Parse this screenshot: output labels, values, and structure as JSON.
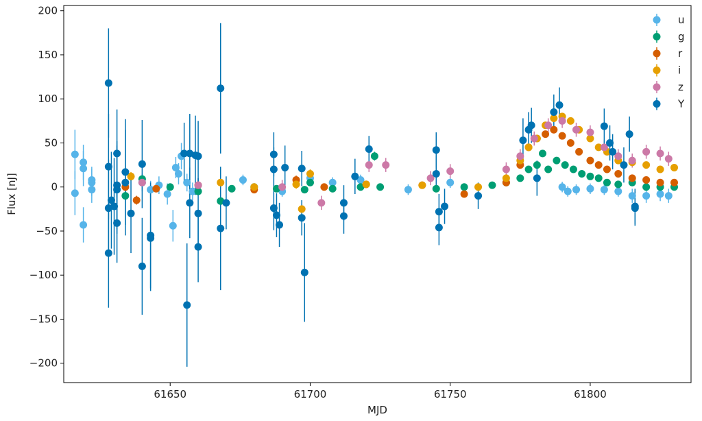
{
  "chart_data": {
    "type": "scatter",
    "title": "",
    "xlabel": "MJD",
    "ylabel": "Flux [nJ]",
    "xlim": [
      61612,
      61836
    ],
    "ylim": [
      -222,
      206
    ],
    "xticks": [
      61650,
      61700,
      61750,
      61800
    ],
    "yticks": [
      -200,
      -150,
      -100,
      -50,
      0,
      50,
      100,
      150,
      200
    ],
    "grid": false,
    "legend_position": "top-right",
    "error_bars": true,
    "series": [
      {
        "name": "u",
        "color": "#56b4e9",
        "points": [
          {
            "x": 61616,
            "y": 37,
            "err": 28
          },
          {
            "x": 61616,
            "y": -7,
            "err": 25
          },
          {
            "x": 61619,
            "y": 28,
            "err": 20
          },
          {
            "x": 61619,
            "y": 21,
            "err": 20
          },
          {
            "x": 61619,
            "y": -43,
            "err": 20
          },
          {
            "x": 61622,
            "y": 8,
            "err": 15
          },
          {
            "x": 61622,
            "y": 5,
            "err": 15
          },
          {
            "x": 61622,
            "y": -3,
            "err": 15
          },
          {
            "x": 61640,
            "y": 5,
            "err": 10
          },
          {
            "x": 61643,
            "y": -3,
            "err": 10
          },
          {
            "x": 61646,
            "y": 2,
            "err": 10
          },
          {
            "x": 61649,
            "y": -8,
            "err": 12
          },
          {
            "x": 61651,
            "y": -44,
            "err": 18
          },
          {
            "x": 61652,
            "y": 22,
            "err": 12
          },
          {
            "x": 61653,
            "y": 15,
            "err": 12
          },
          {
            "x": 61654,
            "y": 35,
            "err": 15
          },
          {
            "x": 61656,
            "y": 5,
            "err": 10
          },
          {
            "x": 61658,
            "y": -5,
            "err": 10
          },
          {
            "x": 61660,
            "y": 2,
            "err": 8
          },
          {
            "x": 61676,
            "y": 8,
            "err": 6
          },
          {
            "x": 61690,
            "y": -5,
            "err": 6
          },
          {
            "x": 61700,
            "y": 10,
            "err": 6
          },
          {
            "x": 61708,
            "y": 5,
            "err": 6
          },
          {
            "x": 61718,
            "y": 8,
            "err": 6
          },
          {
            "x": 61735,
            "y": -3,
            "err": 6
          },
          {
            "x": 61750,
            "y": 5,
            "err": 6
          },
          {
            "x": 61790,
            "y": 0,
            "err": 6
          },
          {
            "x": 61792,
            "y": -5,
            "err": 6
          },
          {
            "x": 61795,
            "y": -3,
            "err": 6
          },
          {
            "x": 61800,
            "y": -2,
            "err": 6
          },
          {
            "x": 61805,
            "y": -3,
            "err": 6
          },
          {
            "x": 61810,
            "y": -5,
            "err": 6
          },
          {
            "x": 61815,
            "y": -10,
            "err": 8
          },
          {
            "x": 61820,
            "y": -10,
            "err": 8
          },
          {
            "x": 61825,
            "y": -8,
            "err": 8
          },
          {
            "x": 61828,
            "y": -10,
            "err": 8
          }
        ]
      },
      {
        "name": "g",
        "color": "#009e73",
        "points": [
          {
            "x": 61634,
            "y": -10,
            "err": 5
          },
          {
            "x": 61640,
            "y": 9,
            "err": 5
          },
          {
            "x": 61650,
            "y": 0,
            "err": 4
          },
          {
            "x": 61660,
            "y": -5,
            "err": 4
          },
          {
            "x": 61668,
            "y": -16,
            "err": 5
          },
          {
            "x": 61672,
            "y": -2,
            "err": 4
          },
          {
            "x": 61680,
            "y": 0,
            "err": 4
          },
          {
            "x": 61688,
            "y": -2,
            "err": 4
          },
          {
            "x": 61698,
            "y": -3,
            "err": 4
          },
          {
            "x": 61700,
            "y": 5,
            "err": 4
          },
          {
            "x": 61708,
            "y": -2,
            "err": 4
          },
          {
            "x": 61718,
            "y": 0,
            "err": 4
          },
          {
            "x": 61723,
            "y": 35,
            "err": 5
          },
          {
            "x": 61725,
            "y": 0,
            "err": 4
          },
          {
            "x": 61745,
            "y": -2,
            "err": 4
          },
          {
            "x": 61755,
            "y": 0,
            "err": 4
          },
          {
            "x": 61765,
            "y": 2,
            "err": 4
          },
          {
            "x": 61770,
            "y": 5,
            "err": 4
          },
          {
            "x": 61775,
            "y": 10,
            "err": 4
          },
          {
            "x": 61778,
            "y": 20,
            "err": 4
          },
          {
            "x": 61781,
            "y": 25,
            "err": 4
          },
          {
            "x": 61783,
            "y": 38,
            "err": 4
          },
          {
            "x": 61785,
            "y": 20,
            "err": 4
          },
          {
            "x": 61788,
            "y": 30,
            "err": 4
          },
          {
            "x": 61791,
            "y": 25,
            "err": 4
          },
          {
            "x": 61794,
            "y": 20,
            "err": 4
          },
          {
            "x": 61797,
            "y": 15,
            "err": 4
          },
          {
            "x": 61800,
            "y": 12,
            "err": 4
          },
          {
            "x": 61803,
            "y": 10,
            "err": 4
          },
          {
            "x": 61806,
            "y": 5,
            "err": 4
          },
          {
            "x": 61810,
            "y": 3,
            "err": 4
          },
          {
            "x": 61815,
            "y": 5,
            "err": 4
          },
          {
            "x": 61820,
            "y": 0,
            "err": 4
          },
          {
            "x": 61825,
            "y": 0,
            "err": 4
          },
          {
            "x": 61830,
            "y": 0,
            "err": 4
          }
        ]
      },
      {
        "name": "r",
        "color": "#d55e00",
        "points": [
          {
            "x": 61634,
            "y": 0,
            "err": 5
          },
          {
            "x": 61638,
            "y": -15,
            "err": 5
          },
          {
            "x": 61645,
            "y": -2,
            "err": 4
          },
          {
            "x": 61660,
            "y": 2,
            "err": 4
          },
          {
            "x": 61680,
            "y": -3,
            "err": 4
          },
          {
            "x": 61695,
            "y": 8,
            "err": 5
          },
          {
            "x": 61705,
            "y": 0,
            "err": 4
          },
          {
            "x": 61720,
            "y": 3,
            "err": 4
          },
          {
            "x": 61740,
            "y": 2,
            "err": 4
          },
          {
            "x": 61755,
            "y": -8,
            "err": 4
          },
          {
            "x": 61770,
            "y": 5,
            "err": 4
          },
          {
            "x": 61775,
            "y": 25,
            "err": 4
          },
          {
            "x": 61778,
            "y": 45,
            "err": 4
          },
          {
            "x": 61781,
            "y": 55,
            "err": 4
          },
          {
            "x": 61784,
            "y": 60,
            "err": 4
          },
          {
            "x": 61787,
            "y": 65,
            "err": 4
          },
          {
            "x": 61790,
            "y": 58,
            "err": 4
          },
          {
            "x": 61793,
            "y": 50,
            "err": 4
          },
          {
            "x": 61796,
            "y": 40,
            "err": 4
          },
          {
            "x": 61800,
            "y": 30,
            "err": 4
          },
          {
            "x": 61803,
            "y": 25,
            "err": 4
          },
          {
            "x": 61806,
            "y": 20,
            "err": 4
          },
          {
            "x": 61810,
            "y": 15,
            "err": 4
          },
          {
            "x": 61815,
            "y": 10,
            "err": 4
          },
          {
            "x": 61820,
            "y": 8,
            "err": 4
          },
          {
            "x": 61825,
            "y": 5,
            "err": 4
          },
          {
            "x": 61830,
            "y": 5,
            "err": 4
          }
        ]
      },
      {
        "name": "i",
        "color": "#e69f00",
        "points": [
          {
            "x": 61636,
            "y": 12,
            "err": 5
          },
          {
            "x": 61668,
            "y": 5,
            "err": 5
          },
          {
            "x": 61680,
            "y": 0,
            "err": 4
          },
          {
            "x": 61695,
            "y": 3,
            "err": 5
          },
          {
            "x": 61697,
            "y": -25,
            "err": 6
          },
          {
            "x": 61700,
            "y": 15,
            "err": 5
          },
          {
            "x": 61720,
            "y": 3,
            "err": 4
          },
          {
            "x": 61740,
            "y": 2,
            "err": 4
          },
          {
            "x": 61760,
            "y": 0,
            "err": 4
          },
          {
            "x": 61770,
            "y": 10,
            "err": 4
          },
          {
            "x": 61775,
            "y": 30,
            "err": 4
          },
          {
            "x": 61778,
            "y": 45,
            "err": 4
          },
          {
            "x": 61781,
            "y": 55,
            "err": 4
          },
          {
            "x": 61784,
            "y": 70,
            "err": 4
          },
          {
            "x": 61787,
            "y": 78,
            "err": 4
          },
          {
            "x": 61790,
            "y": 80,
            "err": 4
          },
          {
            "x": 61793,
            "y": 75,
            "err": 4
          },
          {
            "x": 61796,
            "y": 65,
            "err": 4
          },
          {
            "x": 61800,
            "y": 55,
            "err": 4
          },
          {
            "x": 61803,
            "y": 45,
            "err": 4
          },
          {
            "x": 61806,
            "y": 40,
            "err": 4
          },
          {
            "x": 61810,
            "y": 30,
            "err": 4
          },
          {
            "x": 61815,
            "y": 28,
            "err": 4
          },
          {
            "x": 61820,
            "y": 25,
            "err": 4
          },
          {
            "x": 61825,
            "y": 20,
            "err": 4
          },
          {
            "x": 61830,
            "y": 22,
            "err": 4
          }
        ]
      },
      {
        "name": "z",
        "color": "#cc79a7",
        "points": [
          {
            "x": 61640,
            "y": 5,
            "err": 8
          },
          {
            "x": 61660,
            "y": 2,
            "err": 8
          },
          {
            "x": 61690,
            "y": 0,
            "err": 8
          },
          {
            "x": 61704,
            "y": -18,
            "err": 8
          },
          {
            "x": 61721,
            "y": 25,
            "err": 8
          },
          {
            "x": 61727,
            "y": 25,
            "err": 8
          },
          {
            "x": 61743,
            "y": 10,
            "err": 8
          },
          {
            "x": 61750,
            "y": 18,
            "err": 8
          },
          {
            "x": 61770,
            "y": 20,
            "err": 8
          },
          {
            "x": 61775,
            "y": 35,
            "err": 8
          },
          {
            "x": 61780,
            "y": 55,
            "err": 8
          },
          {
            "x": 61785,
            "y": 70,
            "err": 8
          },
          {
            "x": 61790,
            "y": 75,
            "err": 8
          },
          {
            "x": 61795,
            "y": 65,
            "err": 8
          },
          {
            "x": 61800,
            "y": 62,
            "err": 8
          },
          {
            "x": 61805,
            "y": 45,
            "err": 8
          },
          {
            "x": 61810,
            "y": 35,
            "err": 8
          },
          {
            "x": 61815,
            "y": 30,
            "err": 8
          },
          {
            "x": 61820,
            "y": 40,
            "err": 8
          },
          {
            "x": 61825,
            "y": 38,
            "err": 8
          },
          {
            "x": 61828,
            "y": 32,
            "err": 8
          }
        ]
      },
      {
        "name": "Y",
        "color": "#0072b2",
        "points": [
          {
            "x": 61628,
            "y": 118,
            "err": 62
          },
          {
            "x": 61628,
            "y": 23,
            "err": 60
          },
          {
            "x": 61628,
            "y": -24,
            "err": 55
          },
          {
            "x": 61628,
            "y": -75,
            "err": 62
          },
          {
            "x": 61629,
            "y": -15,
            "err": 55
          },
          {
            "x": 61630,
            "y": -22,
            "err": 55
          },
          {
            "x": 61631,
            "y": 2,
            "err": 50
          },
          {
            "x": 61631,
            "y": -3,
            "err": 50
          },
          {
            "x": 61631,
            "y": 38,
            "err": 50
          },
          {
            "x": 61631,
            "y": -41,
            "err": 45
          },
          {
            "x": 61634,
            "y": 17,
            "err": 60
          },
          {
            "x": 61634,
            "y": 5,
            "err": 60
          },
          {
            "x": 61636,
            "y": -30,
            "err": 45
          },
          {
            "x": 61640,
            "y": 26,
            "err": 50
          },
          {
            "x": 61640,
            "y": -90,
            "err": 55
          },
          {
            "x": 61643,
            "y": -55,
            "err": 60
          },
          {
            "x": 61643,
            "y": -58,
            "err": 60
          },
          {
            "x": 61655,
            "y": 38,
            "err": 35
          },
          {
            "x": 61656,
            "y": -134,
            "err": 70
          },
          {
            "x": 61657,
            "y": 38,
            "err": 45
          },
          {
            "x": 61657,
            "y": -18,
            "err": 40
          },
          {
            "x": 61659,
            "y": 36,
            "err": 45
          },
          {
            "x": 61660,
            "y": -30,
            "err": 40
          },
          {
            "x": 61660,
            "y": -68,
            "err": 40
          },
          {
            "x": 61660,
            "y": 35,
            "err": 40
          },
          {
            "x": 61668,
            "y": 112,
            "err": 74
          },
          {
            "x": 61668,
            "y": -47,
            "err": 70
          },
          {
            "x": 61670,
            "y": -18,
            "err": 30
          },
          {
            "x": 61687,
            "y": 37,
            "err": 25
          },
          {
            "x": 61687,
            "y": 20,
            "err": 25
          },
          {
            "x": 61687,
            "y": -24,
            "err": 25
          },
          {
            "x": 61688,
            "y": -32,
            "err": 25
          },
          {
            "x": 61689,
            "y": -43,
            "err": 25
          },
          {
            "x": 61691,
            "y": 22,
            "err": 25
          },
          {
            "x": 61697,
            "y": 21,
            "err": 20
          },
          {
            "x": 61697,
            "y": -35,
            "err": 20
          },
          {
            "x": 61698,
            "y": -97,
            "err": 56
          },
          {
            "x": 61712,
            "y": -18,
            "err": 20
          },
          {
            "x": 61712,
            "y": -33,
            "err": 20
          },
          {
            "x": 61716,
            "y": 12,
            "err": 20
          },
          {
            "x": 61721,
            "y": 43,
            "err": 15
          },
          {
            "x": 61745,
            "y": 42,
            "err": 20
          },
          {
            "x": 61745,
            "y": 15,
            "err": 20
          },
          {
            "x": 61746,
            "y": -28,
            "err": 20
          },
          {
            "x": 61746,
            "y": -46,
            "err": 20
          },
          {
            "x": 61748,
            "y": -22,
            "err": 20
          },
          {
            "x": 61760,
            "y": -10,
            "err": 15
          },
          {
            "x": 61776,
            "y": 53,
            "err": 25
          },
          {
            "x": 61778,
            "y": 65,
            "err": 20
          },
          {
            "x": 61779,
            "y": 70,
            "err": 20
          },
          {
            "x": 61781,
            "y": 10,
            "err": 20
          },
          {
            "x": 61787,
            "y": 85,
            "err": 20
          },
          {
            "x": 61789,
            "y": 93,
            "err": 20
          },
          {
            "x": 61805,
            "y": 69,
            "err": 20
          },
          {
            "x": 61807,
            "y": 50,
            "err": 20
          },
          {
            "x": 61808,
            "y": 40,
            "err": 20
          },
          {
            "x": 61812,
            "y": 25,
            "err": 20
          },
          {
            "x": 61814,
            "y": 60,
            "err": 20
          },
          {
            "x": 61816,
            "y": -22,
            "err": 20
          },
          {
            "x": 61816,
            "y": -24,
            "err": 20
          }
        ]
      }
    ]
  }
}
